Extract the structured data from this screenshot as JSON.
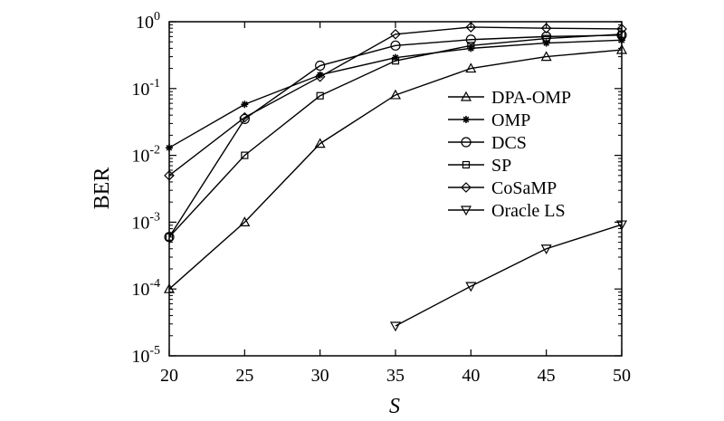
{
  "chart_data": {
    "type": "line",
    "xlabel": "S",
    "ylabel": "BER",
    "x_ticks": [
      "20",
      "25",
      "30",
      "35",
      "40",
      "45",
      "50"
    ],
    "xlim": [
      20,
      50
    ],
    "ylim": [
      1e-05,
      1
    ],
    "y_scale": "log",
    "y_ticks": [
      {
        "base": "10",
        "exp": "0"
      },
      {
        "base": "10",
        "exp": "-1"
      },
      {
        "base": "10",
        "exp": "-2"
      },
      {
        "base": "10",
        "exp": "-3"
      },
      {
        "base": "10",
        "exp": "-4"
      },
      {
        "base": "10",
        "exp": "-5"
      }
    ],
    "y_tick_values": [
      1,
      0.1,
      0.01,
      0.001,
      0.0001,
      1e-05
    ],
    "grid": false,
    "legend_position": "right",
    "series": [
      {
        "name": "DPA-OMP",
        "marker": "triangle-up",
        "x": [
          20,
          25,
          30,
          35,
          40,
          45,
          50
        ],
        "y": [
          0.0001,
          0.001,
          0.015,
          0.08,
          0.2,
          0.3,
          0.38
        ]
      },
      {
        "name": "OMP",
        "marker": "star",
        "x": [
          20,
          25,
          30,
          35,
          40,
          45,
          50
        ],
        "y": [
          0.013,
          0.058,
          0.16,
          0.29,
          0.4,
          0.48,
          0.53
        ]
      },
      {
        "name": "DCS",
        "marker": "circle",
        "x": [
          20,
          25,
          30,
          35,
          40,
          45,
          50
        ],
        "y": [
          0.0006,
          0.035,
          0.22,
          0.44,
          0.54,
          0.6,
          0.63
        ]
      },
      {
        "name": "SP",
        "marker": "square",
        "x": [
          20,
          25,
          30,
          35,
          40,
          45,
          50
        ],
        "y": [
          0.0006,
          0.01,
          0.078,
          0.26,
          0.44,
          0.56,
          0.65
        ]
      },
      {
        "name": "CoSaMP",
        "marker": "diamond",
        "x": [
          20,
          25,
          30,
          35,
          40,
          45,
          50
        ],
        "y": [
          0.005,
          0.037,
          0.15,
          0.65,
          0.83,
          0.8,
          0.78
        ]
      },
      {
        "name": "Oracle LS",
        "marker": "triangle-down",
        "x": [
          35,
          40,
          45,
          50
        ],
        "y": [
          2.8e-05,
          0.00011,
          0.0004,
          0.00092
        ]
      }
    ]
  }
}
